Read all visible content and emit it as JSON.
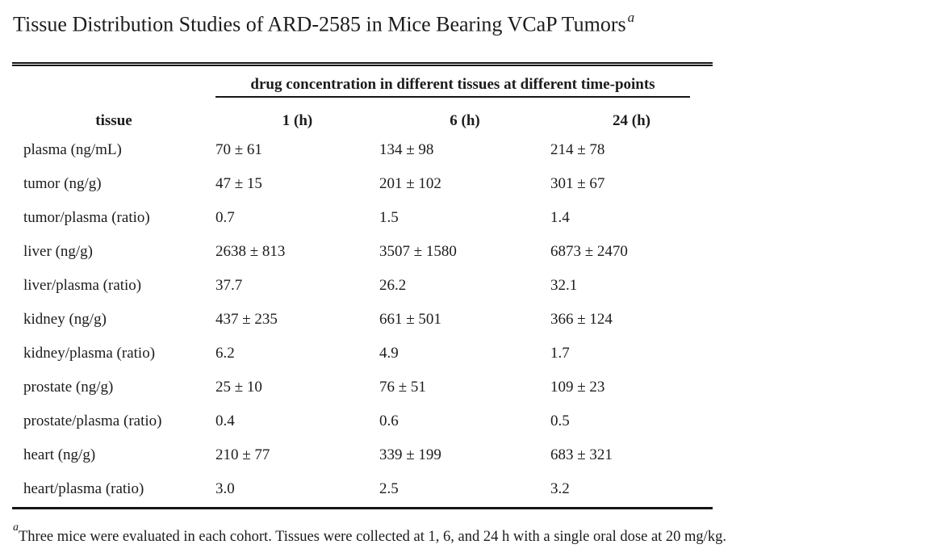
{
  "title": {
    "text": "Tissue Distribution Studies of ARD-2585 in Mice Bearing VCaP Tumors",
    "superscript": "a"
  },
  "table": {
    "spanner_header": "drug concentration in different tissues at different time-points",
    "columns": [
      "tissue",
      "1 (h)",
      "6 (h)",
      "24 (h)"
    ],
    "rows": [
      {
        "tissue": "plasma (ng/mL)",
        "values": [
          "70 ± 61",
          "134 ± 98",
          "214 ± 78"
        ]
      },
      {
        "tissue": "tumor (ng/g)",
        "values": [
          "47 ± 15",
          "201 ± 102",
          "301 ± 67"
        ]
      },
      {
        "tissue": "tumor/plasma (ratio)",
        "values": [
          "0.7",
          "1.5",
          "1.4"
        ]
      },
      {
        "tissue": "liver (ng/g)",
        "values": [
          "2638 ± 813",
          "3507 ± 1580",
          "6873 ± 2470"
        ]
      },
      {
        "tissue": "liver/plasma (ratio)",
        "values": [
          "37.7",
          "26.2",
          "32.1"
        ]
      },
      {
        "tissue": "kidney (ng/g)",
        "values": [
          "437 ± 235",
          "661 ± 501",
          "366 ± 124"
        ]
      },
      {
        "tissue": "kidney/plasma (ratio)",
        "values": [
          "6.2",
          "4.9",
          "1.7"
        ]
      },
      {
        "tissue": "prostate (ng/g)",
        "values": [
          "25 ± 10",
          "76 ± 51",
          "109 ± 23"
        ]
      },
      {
        "tissue": "prostate/plasma (ratio)",
        "values": [
          "0.4",
          "0.6",
          "0.5"
        ]
      },
      {
        "tissue": "heart (ng/g)",
        "values": [
          "210 ± 77",
          "339 ± 199",
          "683 ± 321"
        ]
      },
      {
        "tissue": "heart/plasma (ratio)",
        "values": [
          "3.0",
          "2.5",
          "3.2"
        ]
      }
    ]
  },
  "footnote": {
    "marker": "a",
    "text": "Three mice were evaluated in each cohort. Tissues were collected at 1, 6, and 24 h with a single oral dose at 20 mg/kg."
  },
  "colors": {
    "text": "#1c1c1c",
    "rule": "#161616",
    "background": "#ffffff"
  }
}
